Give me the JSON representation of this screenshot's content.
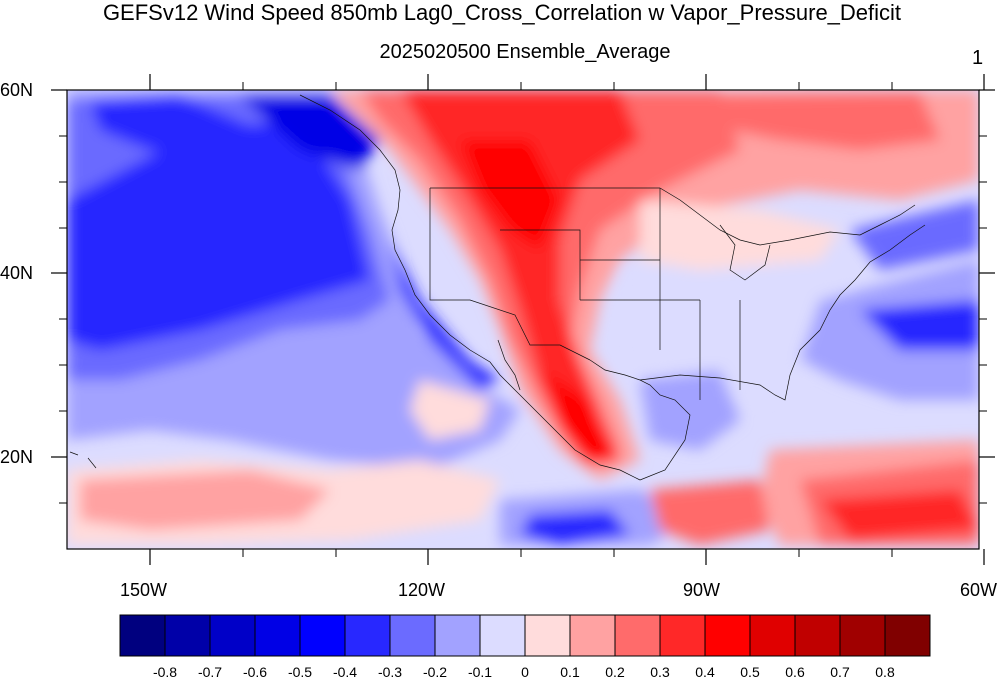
{
  "title": "GEFSv12 Wind Speed 850mb Lag0_Cross_Correlation w Vapor_Pressure_Deficit",
  "subtitle": "2025020500 Ensemble_Average",
  "panel_number": "1",
  "map": {
    "lat_labels": [
      "60N",
      "40N",
      "20N"
    ],
    "lon_labels": [
      "150W",
      "120W",
      "90W",
      "60W"
    ]
  },
  "colorbar": {
    "colors": [
      "#00007f",
      "#0000a8",
      "#0000c8",
      "#0000e6",
      "#0000ff",
      "#2828ff",
      "#6b6bff",
      "#a2a2ff",
      "#dcdcff",
      "#ffdcdc",
      "#ffa2a2",
      "#ff6b6b",
      "#ff2828",
      "#ff0000",
      "#e00000",
      "#c00000",
      "#a00000",
      "#800000"
    ],
    "labels": [
      "-0.8",
      "-0.7",
      "-0.6",
      "-0.5",
      "-0.4",
      "-0.3",
      "-0.2",
      "-0.1",
      "0",
      "0.1",
      "0.2",
      "0.3",
      "0.4",
      "0.5",
      "0.6",
      "0.7",
      "0.8"
    ]
  }
}
